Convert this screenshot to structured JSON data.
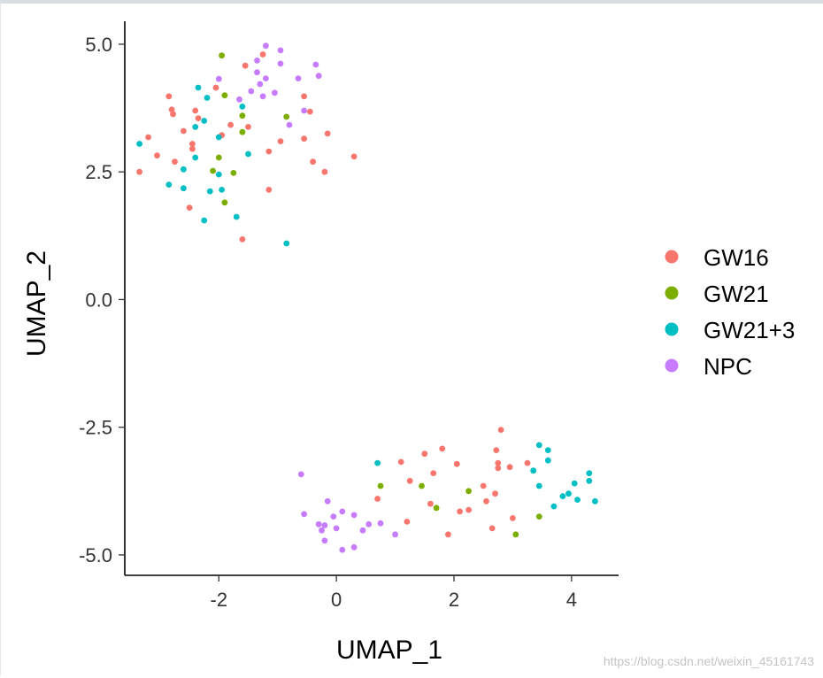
{
  "chart_data": {
    "type": "scatter",
    "xlabel": "UMAP_1",
    "ylabel": "UMAP_2",
    "xlim": [
      -3.6,
      4.8
    ],
    "ylim": [
      -5.4,
      5.45
    ],
    "xticks": [
      -2,
      0,
      2,
      4
    ],
    "yticks": [
      -5.0,
      -2.5,
      0.0,
      2.5,
      5.0
    ],
    "xtick_labels": [
      "-2",
      "0",
      "2",
      "4"
    ],
    "ytick_labels": [
      "-5.0",
      "-2.5",
      "0.0",
      "2.5",
      "5.0"
    ],
    "grid": false,
    "legend_position": "right",
    "series": [
      {
        "name": "GW16",
        "color": "#F8766D",
        "points": [
          [
            -2.85,
            3.98
          ],
          [
            -2.8,
            3.72
          ],
          [
            -2.78,
            3.63
          ],
          [
            -2.4,
            3.7
          ],
          [
            -2.35,
            3.55
          ],
          [
            -2.05,
            4.15
          ],
          [
            -1.95,
            3.22
          ],
          [
            -1.8,
            3.42
          ],
          [
            -1.55,
            4.58
          ],
          [
            -1.25,
            4.8
          ],
          [
            -3.2,
            3.18
          ],
          [
            -3.35,
            2.5
          ],
          [
            -3.05,
            2.82
          ],
          [
            -2.6,
            3.3
          ],
          [
            -2.45,
            3.05
          ],
          [
            -2.45,
            2.95
          ],
          [
            -2.75,
            2.7
          ],
          [
            -2.5,
            1.8
          ],
          [
            -1.6,
            1.18
          ],
          [
            -1.15,
            2.15
          ],
          [
            -1.15,
            2.9
          ],
          [
            -0.95,
            3.1
          ],
          [
            -0.55,
            3.98
          ],
          [
            -0.45,
            3.68
          ],
          [
            -0.55,
            3.15
          ],
          [
            -0.4,
            2.7
          ],
          [
            -0.2,
            2.5
          ],
          [
            -0.15,
            3.25
          ],
          [
            0.3,
            2.8
          ],
          [
            -1.5,
            3.38
          ],
          [
            0.7,
            -3.9
          ],
          [
            1.1,
            -3.18
          ],
          [
            1.25,
            -3.55
          ],
          [
            1.5,
            -3.02
          ],
          [
            1.65,
            -3.4
          ],
          [
            1.6,
            -4.0
          ],
          [
            1.8,
            -2.92
          ],
          [
            1.9,
            -4.6
          ],
          [
            2.05,
            -3.22
          ],
          [
            2.1,
            -4.15
          ],
          [
            2.25,
            -4.12
          ],
          [
            2.5,
            -3.65
          ],
          [
            2.55,
            -3.95
          ],
          [
            2.65,
            -4.48
          ],
          [
            2.7,
            -3.8
          ],
          [
            2.75,
            -3.3
          ],
          [
            2.75,
            -3.2
          ],
          [
            2.8,
            -2.55
          ],
          [
            2.95,
            -3.28
          ],
          [
            3.0,
            -4.28
          ],
          [
            3.25,
            -3.2
          ],
          [
            1.2,
            -4.35
          ],
          [
            2.72,
            -2.95
          ]
        ]
      },
      {
        "name": "GW21",
        "color": "#7CAE00",
        "points": [
          [
            -1.95,
            4.78
          ],
          [
            -1.9,
            4.0
          ],
          [
            -1.6,
            3.6
          ],
          [
            -1.6,
            3.28
          ],
          [
            -2.0,
            2.78
          ],
          [
            -2.1,
            2.52
          ],
          [
            -1.75,
            2.48
          ],
          [
            -1.9,
            1.9
          ],
          [
            -0.85,
            3.58
          ],
          [
            0.75,
            -3.65
          ],
          [
            1.45,
            -3.65
          ],
          [
            1.7,
            -4.08
          ],
          [
            2.25,
            -3.75
          ],
          [
            3.05,
            -4.6
          ],
          [
            3.45,
            -4.25
          ]
        ]
      },
      {
        "name": "GW21+3",
        "color": "#00BFC4",
        "points": [
          [
            -3.35,
            3.05
          ],
          [
            -2.35,
            4.15
          ],
          [
            -2.2,
            3.95
          ],
          [
            -1.6,
            3.78
          ],
          [
            -2.4,
            3.38
          ],
          [
            -2.25,
            3.5
          ],
          [
            -2.0,
            3.18
          ],
          [
            -2.4,
            2.78
          ],
          [
            -2.6,
            2.55
          ],
          [
            -2.0,
            2.45
          ],
          [
            -2.85,
            2.25
          ],
          [
            -2.6,
            2.18
          ],
          [
            -2.15,
            2.12
          ],
          [
            -1.95,
            2.15
          ],
          [
            -2.25,
            1.55
          ],
          [
            -1.7,
            1.62
          ],
          [
            -1.5,
            2.85
          ],
          [
            -0.85,
            1.1
          ],
          [
            0.7,
            -3.2
          ],
          [
            3.35,
            -3.35
          ],
          [
            3.45,
            -2.85
          ],
          [
            3.6,
            -2.95
          ],
          [
            3.6,
            -3.15
          ],
          [
            3.45,
            -3.65
          ],
          [
            3.7,
            -4.05
          ],
          [
            3.85,
            -3.85
          ],
          [
            3.95,
            -3.8
          ],
          [
            4.05,
            -3.6
          ],
          [
            4.1,
            -3.92
          ],
          [
            4.3,
            -3.4
          ],
          [
            4.3,
            -3.55
          ],
          [
            4.4,
            -3.95
          ]
        ]
      },
      {
        "name": "NPC",
        "color": "#C77CFF",
        "points": [
          [
            -1.2,
            4.97
          ],
          [
            -0.95,
            4.88
          ],
          [
            -1.35,
            4.68
          ],
          [
            -0.95,
            4.62
          ],
          [
            -0.65,
            4.33
          ],
          [
            -0.35,
            4.6
          ],
          [
            -0.3,
            4.38
          ],
          [
            -1.35,
            4.45
          ],
          [
            -1.3,
            4.22
          ],
          [
            -1.2,
            4.33
          ],
          [
            -1.05,
            4.05
          ],
          [
            -0.8,
            3.42
          ],
          [
            -0.55,
            3.7
          ],
          [
            -1.45,
            4.08
          ],
          [
            -1.65,
            3.92
          ],
          [
            -1.25,
            3.98
          ],
          [
            -2.0,
            4.32
          ],
          [
            -0.6,
            -3.42
          ],
          [
            -0.55,
            -4.2
          ],
          [
            -0.3,
            -4.4
          ],
          [
            -0.2,
            -4.42
          ],
          [
            -0.25,
            -4.52
          ],
          [
            -0.2,
            -4.72
          ],
          [
            -0.15,
            -3.95
          ],
          [
            0.1,
            -4.15
          ],
          [
            0.0,
            -4.48
          ],
          [
            0.1,
            -4.9
          ],
          [
            0.3,
            -4.85
          ],
          [
            0.3,
            -4.22
          ],
          [
            0.45,
            -4.52
          ],
          [
            0.55,
            -4.4
          ],
          [
            0.75,
            -4.38
          ],
          [
            1.0,
            -4.6
          ],
          [
            -0.05,
            -4.25
          ]
        ]
      }
    ]
  },
  "watermark": "https://blog.csdn.net/weixin_45161743"
}
